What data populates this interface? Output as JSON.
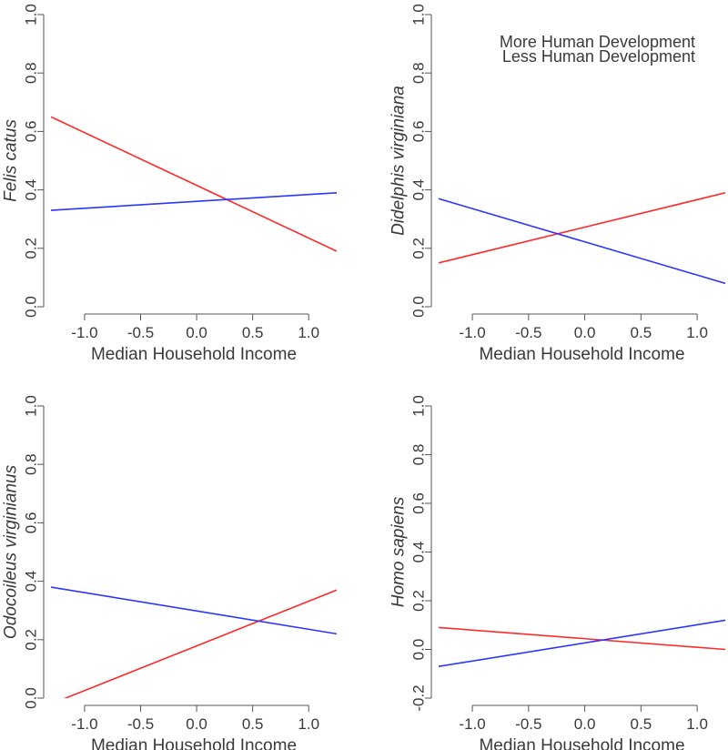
{
  "legend": [
    {
      "label": "More Human Development",
      "color": "#ff2a2a"
    },
    {
      "label": "Less Human Development",
      "color": "#2a35ff"
    }
  ],
  "chart_data": [
    {
      "type": "line",
      "ylabel": "Felis catus",
      "xlabel": "Median Household Income",
      "xlim": [
        -1.3,
        1.25
      ],
      "ylim": [
        0.0,
        1.0
      ],
      "xticks": [
        -1.0,
        -0.5,
        0.0,
        0.5,
        1.0
      ],
      "xtick_labels": [
        "-1.0",
        "-0.5",
        "0.0",
        "0.5",
        "1.0"
      ],
      "yticks": [
        0.0,
        0.2,
        0.4,
        0.6,
        0.8,
        1.0
      ],
      "ytick_labels": [
        "0.0",
        "0.2",
        "0.4",
        "0.6",
        "0.8",
        "1.0"
      ],
      "legend": "top-right",
      "series": [
        {
          "name": "More Human Development",
          "color": "#ff2a2a",
          "x": [
            -1.3,
            1.25
          ],
          "y": [
            0.65,
            0.19
          ]
        },
        {
          "name": "Less Human Development",
          "color": "#2a35ff",
          "x": [
            -1.3,
            1.25
          ],
          "y": [
            0.33,
            0.39
          ]
        }
      ]
    },
    {
      "type": "line",
      "ylabel": "Didelphis virginiana",
      "xlabel": "Median Household Income",
      "xlim": [
        -1.3,
        1.25
      ],
      "ylim": [
        0.0,
        1.0
      ],
      "xticks": [
        -1.0,
        -0.5,
        0.0,
        0.5,
        1.0
      ],
      "xtick_labels": [
        "-1.0",
        "-0.5",
        "0.0",
        "0.5",
        "1.0"
      ],
      "yticks": [
        0.0,
        0.2,
        0.4,
        0.6,
        0.8,
        1.0
      ],
      "ytick_labels": [
        "0.0",
        "0.2",
        "0.4",
        "0.6",
        "0.8",
        "1.0"
      ],
      "legend": "top-right",
      "series": [
        {
          "name": "More Human Development",
          "color": "#ff2a2a",
          "x": [
            -1.3,
            1.25
          ],
          "y": [
            0.15,
            0.39
          ]
        },
        {
          "name": "Less Human Development",
          "color": "#2a35ff",
          "x": [
            -1.3,
            1.25
          ],
          "y": [
            0.37,
            0.08
          ]
        }
      ]
    },
    {
      "type": "line",
      "ylabel": "Odocoileus virginianus",
      "xlabel": "Median Household Income",
      "xlim": [
        -1.3,
        1.25
      ],
      "ylim": [
        0.0,
        1.0
      ],
      "xticks": [
        -1.0,
        -0.5,
        0.0,
        0.5,
        1.0
      ],
      "xtick_labels": [
        "-1.0",
        "-0.5",
        "0.0",
        "0.5",
        "1.0"
      ],
      "yticks": [
        0.0,
        0.2,
        0.4,
        0.6,
        0.8,
        1.0
      ],
      "ytick_labels": [
        "0.0",
        "0.2",
        "0.4",
        "0.6",
        "0.8",
        "1.0"
      ],
      "legend": "top-right",
      "series": [
        {
          "name": "More Human Development",
          "color": "#ff2a2a",
          "x": [
            -1.3,
            1.25
          ],
          "y": [
            -0.02,
            0.37
          ]
        },
        {
          "name": "Less Human Development",
          "color": "#2a35ff",
          "x": [
            -1.3,
            1.25
          ],
          "y": [
            0.38,
            0.22
          ]
        }
      ]
    },
    {
      "type": "line",
      "ylabel": "Homo sapiens",
      "xlabel": "Median Household Income",
      "xlim": [
        -1.3,
        1.25
      ],
      "ylim": [
        -0.2,
        1.0
      ],
      "xticks": [
        -1.0,
        -0.5,
        0.0,
        0.5,
        1.0
      ],
      "xtick_labels": [
        "-1.0",
        "-0.5",
        "0.0",
        "0.5",
        "1.0"
      ],
      "yticks": [
        -0.2,
        0.0,
        0.2,
        0.4,
        0.6,
        0.8,
        1.0
      ],
      "ytick_labels": [
        "-0.2",
        "0.0",
        "0.2",
        "0.4",
        "0.6",
        "0.8",
        "1.0"
      ],
      "legend": "top-right",
      "series": [
        {
          "name": "More Human Development",
          "color": "#ff2a2a",
          "x": [
            -1.3,
            1.25
          ],
          "y": [
            0.09,
            0.0
          ]
        },
        {
          "name": "Less Human Development",
          "color": "#2a35ff",
          "x": [
            -1.3,
            1.25
          ],
          "y": [
            -0.07,
            0.12
          ]
        }
      ]
    }
  ]
}
